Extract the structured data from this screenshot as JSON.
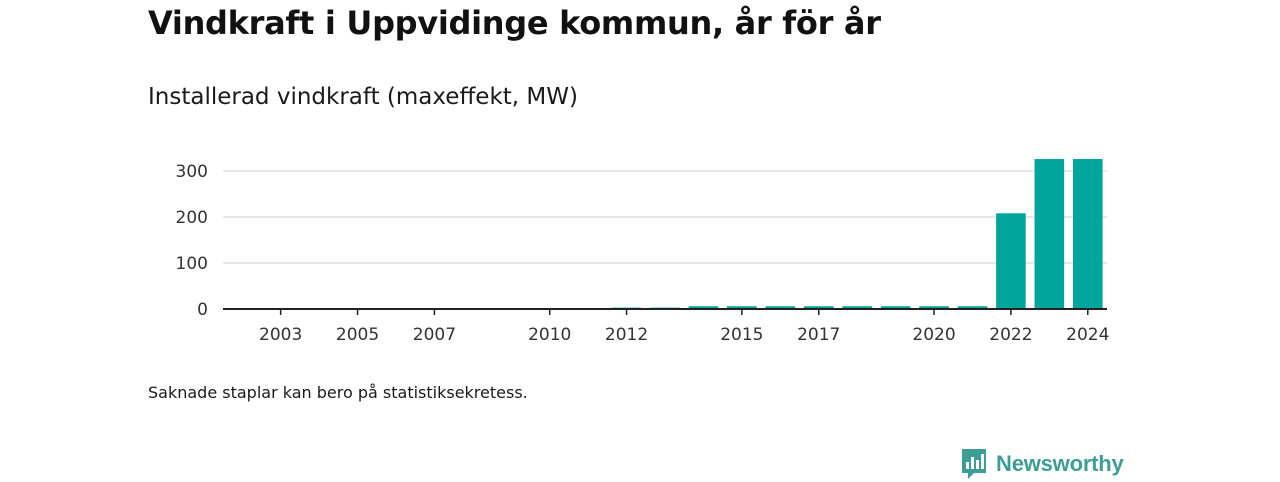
{
  "title": "Vindkraft i Uppvidinge kommun, år för år",
  "subtitle": "Installerad vindkraft (maxeffekt, MW)",
  "note": "Saknade staplar kan bero på statistiksekretess.",
  "brand": "Newsworthy",
  "colors": {
    "bar": "#00a69c",
    "grid": "#d9d9d9",
    "axis": "#222222",
    "brand": "#3d9e95"
  },
  "chart_data": {
    "type": "bar",
    "categories": [
      "2002",
      "2003",
      "2004",
      "2005",
      "2006",
      "2007",
      "2008",
      "2009",
      "2010",
      "2011",
      "2012",
      "2013",
      "2014",
      "2015",
      "2016",
      "2017",
      "2018",
      "2019",
      "2020",
      "2021",
      "2022",
      "2023",
      "2024"
    ],
    "values": [
      null,
      null,
      null,
      null,
      null,
      null,
      null,
      null,
      null,
      null,
      3,
      3,
      6,
      6,
      6,
      6,
      6,
      6,
      6,
      6,
      208,
      326,
      326
    ],
    "x_tick_labels": [
      "2003",
      "2005",
      "2007",
      "2010",
      "2012",
      "2015",
      "2017",
      "2020",
      "2022",
      "2024"
    ],
    "y_ticks": [
      0,
      100,
      200,
      300
    ],
    "ylim": [
      0,
      330
    ],
    "grid": true,
    "legend": "none"
  }
}
